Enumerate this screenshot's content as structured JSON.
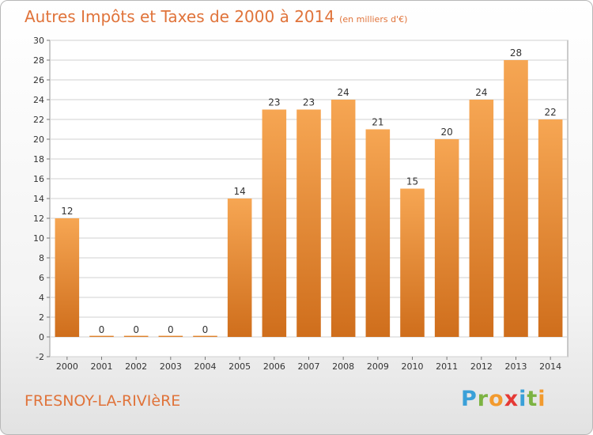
{
  "title": "Autres Impôts et Taxes de 2000 à 2014",
  "subtitle": "(en milliers d'€)",
  "commune": "FRESNOY-LA-RIVIèRE",
  "logo": {
    "letters": [
      "P",
      "r",
      "o",
      "x",
      "i",
      "t",
      "i"
    ],
    "colors": [
      "#3aa0d8",
      "#7cb342",
      "#f29a2e",
      "#e53935",
      "#3aa0d8",
      "#7cb342",
      "#f29a2e"
    ]
  },
  "colors": {
    "bar_light": "#f6a653",
    "bar_dark": "#cf6e1c",
    "title": "#e0733a",
    "grid": "#d0d0d0",
    "axis_text": "#333333"
  },
  "chart_data": {
    "type": "bar",
    "title": "Autres Impôts et Taxes de 2000 à 2014",
    "subtitle": "(en milliers d'€)",
    "categories": [
      "2000",
      "2001",
      "2002",
      "2003",
      "2004",
      "2005",
      "2006",
      "2007",
      "2008",
      "2009",
      "2010",
      "2011",
      "2012",
      "2013",
      "2014"
    ],
    "values": [
      12,
      0,
      0,
      0,
      0,
      14,
      23,
      23,
      24,
      21,
      15,
      20,
      24,
      28,
      22
    ],
    "data_labels": [
      "12",
      "0",
      "0",
      "0",
      "0",
      "14",
      "23",
      "23",
      "24",
      "21",
      "15",
      "20",
      "24",
      "28",
      "22"
    ],
    "yticks": [
      -2,
      0,
      2,
      4,
      6,
      8,
      10,
      12,
      14,
      16,
      18,
      20,
      22,
      24,
      26,
      28,
      30
    ],
    "ylim": [
      -2,
      30
    ],
    "xlabel": "",
    "ylabel": "",
    "grid": true,
    "legend": "none"
  }
}
